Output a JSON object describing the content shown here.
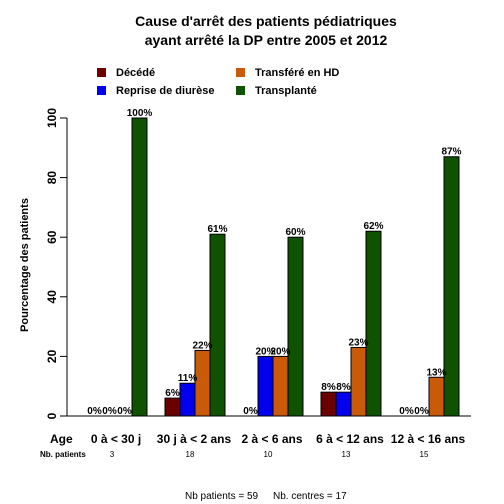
{
  "chart_data": {
    "type": "bar",
    "title_line1": "Cause d'arrêt des patients pédiatriques",
    "title_line2": "ayant arrêté la DP entre 2005 et 2012",
    "ylabel": "Pourcentage des patients",
    "ylim": [
      0,
      100
    ],
    "yticks": [
      0,
      20,
      40,
      60,
      80,
      100
    ],
    "age_label": "Age",
    "nb_patients_label": "Nb. patients",
    "categories": [
      "0 à < 30 j",
      "30 j à < 2 ans",
      "2 à < 6 ans",
      "6 à < 12 ans",
      "12 à < 16 ans"
    ],
    "nb_patients": [
      "3",
      "18",
      "10",
      "13",
      "15"
    ],
    "legend_position": "top",
    "series": [
      {
        "name": "Décédé",
        "color": "#6b0000",
        "values": [
          0,
          6,
          0,
          8,
          0
        ],
        "labels": [
          "0%",
          "6%",
          "0%",
          "8%",
          "0%"
        ]
      },
      {
        "name": "Reprise de diurèse",
        "color": "#0000ee",
        "values": [
          0,
          11,
          20,
          8,
          0
        ],
        "labels": [
          "0%",
          "11%",
          "20%",
          "8%",
          "0%"
        ]
      },
      {
        "name": "Transféré en HD",
        "color": "#c85a0a",
        "values": [
          0,
          22,
          20,
          23,
          13
        ],
        "labels": [
          "0%",
          "22%",
          "20%",
          "23%",
          "13%"
        ]
      },
      {
        "name": "Transplanté",
        "color": "#0f5200",
        "values": [
          100,
          61,
          60,
          62,
          87
        ],
        "labels": [
          "100%",
          "61%",
          "60%",
          "62%",
          "87%"
        ]
      }
    ],
    "footer_patients": "Nb patients =  59",
    "footer_centres": "Nb. centres =  17"
  }
}
